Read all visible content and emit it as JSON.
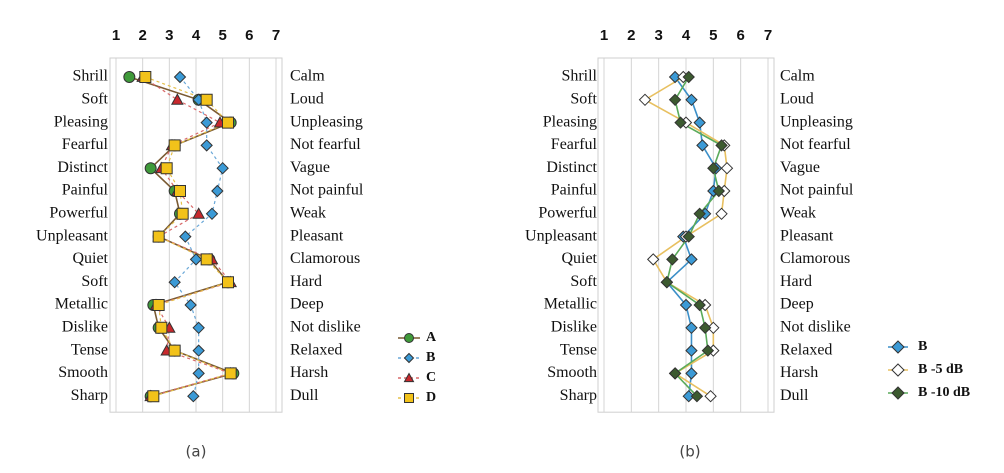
{
  "chart_data": [
    {
      "type": "line",
      "caption": "(a)",
      "categories": [
        "Shrill",
        "Soft",
        "Pleasing",
        "Fearful",
        "Distinct",
        "Painful",
        "Powerful",
        "Unpleasant",
        "Quiet",
        "Soft",
        "Metallic",
        "Dislike",
        "Tense",
        "Smooth",
        "Sharp"
      ],
      "right_labels": [
        "Calm",
        "Loud",
        "Unpleasing",
        "Not fearful",
        "Vague",
        "Not painful",
        "Weak",
        "Pleasant",
        "Clamorous",
        "Hard",
        "Deep",
        "Not dislike",
        "Relaxed",
        "Harsh",
        "Dull"
      ],
      "xlim": [
        1,
        7
      ],
      "xticks": [
        1,
        2,
        3,
        4,
        5,
        6,
        7
      ],
      "grid": true,
      "legend": "right",
      "series": [
        {
          "name": "A",
          "color": "#3f9a3a",
          "line_color": "#7a5a32",
          "marker": "circle",
          "dash": false,
          "values": [
            1.5,
            4.1,
            5.3,
            3.2,
            2.3,
            3.2,
            3.4,
            2.6,
            4.5,
            5.2,
            2.4,
            2.6,
            3.2,
            5.4,
            2.3
          ]
        },
        {
          "name": "B",
          "color": "#3b9ad6",
          "line_color": "#6aa8d8",
          "marker": "diamond",
          "dash": true,
          "values": [
            3.4,
            4.1,
            4.4,
            4.4,
            5.0,
            4.8,
            4.6,
            3.6,
            4.0,
            3.2,
            3.8,
            4.1,
            4.1,
            4.1,
            3.9
          ]
        },
        {
          "name": "C",
          "color": "#c8282c",
          "line_color": "#d86a6a",
          "marker": "triangle",
          "dash": true,
          "values": [
            2.0,
            3.3,
            4.9,
            3.1,
            2.7,
            3.3,
            4.1,
            2.6,
            4.6,
            5.3,
            2.5,
            3.0,
            2.9,
            5.3,
            2.3
          ]
        },
        {
          "name": "D",
          "color": "#f2c21a",
          "line_color": "#e6c04a",
          "marker": "square",
          "dash": true,
          "values": [
            2.1,
            4.4,
            5.2,
            3.2,
            2.9,
            3.4,
            3.5,
            2.6,
            4.4,
            5.2,
            2.6,
            2.7,
            3.2,
            5.3,
            2.4
          ]
        }
      ]
    },
    {
      "type": "line",
      "caption": "(b)",
      "categories": [
        "Shrill",
        "Soft",
        "Pleasing",
        "Fearful",
        "Distinct",
        "Painful",
        "Powerful",
        "Unpleasant",
        "Quiet",
        "Soft",
        "Metallic",
        "Dislike",
        "Tense",
        "Smooth",
        "Sharp"
      ],
      "right_labels": [
        "Calm",
        "Loud",
        "Unpleasing",
        "Not fearful",
        "Vague",
        "Not painful",
        "Weak",
        "Pleasant",
        "Clamorous",
        "Hard",
        "Deep",
        "Not dislike",
        "Relaxed",
        "Harsh",
        "Dull"
      ],
      "xlim": [
        1,
        7
      ],
      "xticks": [
        1,
        2,
        3,
        4,
        5,
        6,
        7
      ],
      "grid": true,
      "legend": "right",
      "series": [
        {
          "name": "B",
          "color": "#3b9ad6",
          "line_color": "#3b8fc8",
          "marker": "diamond",
          "dash": false,
          "values": [
            3.6,
            4.2,
            4.5,
            4.6,
            5.1,
            5.0,
            4.7,
            3.9,
            4.2,
            3.3,
            4.0,
            4.2,
            4.2,
            4.2,
            4.1
          ]
        },
        {
          "name": "B -5 dB",
          "color": "#ffffff",
          "line_color": "#e8c060",
          "marker": "diamond",
          "dash": false,
          "values": [
            3.9,
            2.5,
            4.0,
            5.4,
            5.5,
            5.4,
            5.3,
            4.0,
            2.8,
            3.3,
            4.7,
            5.0,
            5.0,
            3.6,
            4.9
          ]
        },
        {
          "name": "B -10 dB",
          "color": "#3c5a30",
          "line_color": "#5aaa5a",
          "marker": "diamond",
          "dash": false,
          "values": [
            4.1,
            3.6,
            3.8,
            5.3,
            5.0,
            5.2,
            4.5,
            4.1,
            3.5,
            3.3,
            4.5,
            4.7,
            4.8,
            3.6,
            4.4
          ]
        }
      ]
    }
  ]
}
